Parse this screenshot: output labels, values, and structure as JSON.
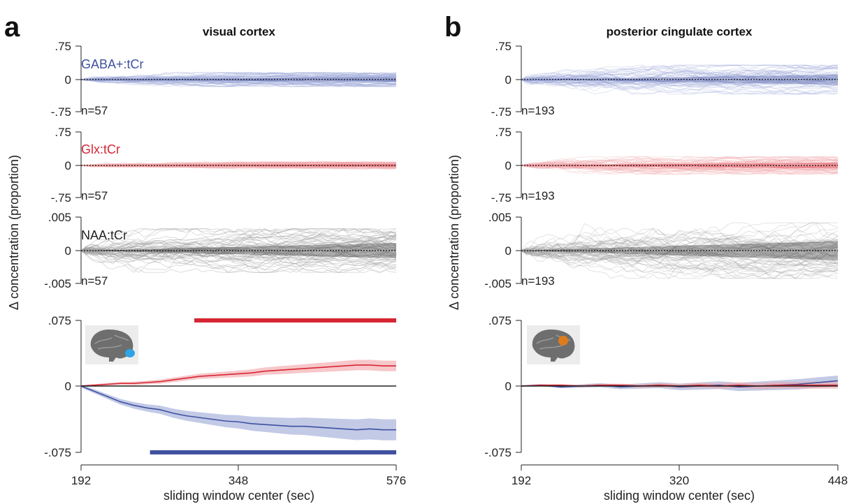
{
  "colors": {
    "gaba": "#3f51a0",
    "glx": "#d62633",
    "naa": "#222222",
    "gaba_band": "#9aa6d6",
    "glx_band": "#f1a2a6",
    "naa_band": "#9a9a9a"
  },
  "icons": [
    "brain-sagittal-visual-icon",
    "brain-sagittal-pcc-icon"
  ],
  "labels": {
    "panel_a": "a",
    "panel_b": "b",
    "title_a": "visual cortex",
    "title_b": "posterior cingulate cortex",
    "ylabel": "Δ concentration (proportion)",
    "xlabel": "sliding window center (sec)",
    "gaba": "GABA+:tCr",
    "glx": "Glx:tCr",
    "naa": "NAA:tCr",
    "n_a": "n=57",
    "n_b": "n=193"
  },
  "chart_data": [
    {
      "panel": "a",
      "title": "visual cortex",
      "type": "line",
      "xlabel": "sliding window center (sec)",
      "ylabel": "Δ concentration (proportion)",
      "xlim": [
        192,
        576
      ],
      "xticks": [
        "192",
        "348",
        "576"
      ],
      "subplots": [
        {
          "name": "GABA+:tCr",
          "n": "n=57",
          "ylim": [
            -0.75,
            0.75
          ],
          "yticks": [
            ".75",
            "0",
            "-.75"
          ],
          "individual_lines": 57,
          "spread_end": 0.12
        },
        {
          "name": "Glx:tCr",
          "n": "n=57",
          "ylim": [
            -0.75,
            0.75
          ],
          "yticks": [
            ".75",
            "0",
            "-.75"
          ],
          "individual_lines": 57,
          "spread_end": 0.06
        },
        {
          "name": "NAA:tCr",
          "n": "n=57",
          "ylim": [
            -0.005,
            0.005
          ],
          "yticks": [
            ".005",
            "0",
            "-.005"
          ],
          "individual_lines": 57,
          "spread_end": 0.0025
        },
        {
          "name": "mean",
          "ylim": [
            -0.075,
            0.075
          ],
          "yticks": [
            ".075",
            "0",
            "-.075"
          ],
          "significance_bars": [
            {
              "series": "Glx:tCr",
              "x_start": 330,
              "x_end": 576
            },
            {
              "series": "GABA+:tCr",
              "x_start": 276,
              "x_end": 576
            }
          ],
          "series": [
            {
              "name": "GABA+:tCr",
              "x": [
                192,
                208,
                224,
                240,
                256,
                272,
                288,
                304,
                320,
                336,
                352,
                368,
                384,
                400,
                416,
                432,
                448,
                464,
                480,
                496,
                512,
                528,
                544,
                560,
                576
              ],
              "y": [
                0,
                -0.006,
                -0.012,
                -0.018,
                -0.022,
                -0.025,
                -0.027,
                -0.031,
                -0.034,
                -0.036,
                -0.038,
                -0.04,
                -0.041,
                -0.043,
                -0.044,
                -0.045,
                -0.046,
                -0.046,
                -0.047,
                -0.048,
                -0.049,
                -0.05,
                -0.049,
                -0.05,
                -0.05
              ],
              "ci": 0.012
            },
            {
              "name": "Glx:tCr",
              "x": [
                192,
                208,
                224,
                240,
                256,
                272,
                288,
                304,
                320,
                336,
                352,
                368,
                384,
                400,
                416,
                432,
                448,
                464,
                480,
                496,
                512,
                528,
                544,
                560,
                576
              ],
              "y": [
                0,
                0.001,
                0.002,
                0.003,
                0.003,
                0.004,
                0.005,
                0.007,
                0.009,
                0.011,
                0.012,
                0.013,
                0.014,
                0.015,
                0.017,
                0.018,
                0.019,
                0.02,
                0.021,
                0.022,
                0.023,
                0.024,
                0.024,
                0.023,
                0.023
              ],
              "ci": 0.006
            },
            {
              "name": "NAA:tCr",
              "x": [
                192,
                576
              ],
              "y": [
                0,
                0
              ],
              "ci": 0.0005
            }
          ]
        }
      ]
    },
    {
      "panel": "b",
      "title": "posterior cingulate cortex",
      "type": "line",
      "xlabel": "sliding window center (sec)",
      "ylabel": "Δ concentration (proportion)",
      "xlim": [
        192,
        448
      ],
      "xticks": [
        "192",
        "320",
        "448"
      ],
      "subplots": [
        {
          "name": "GABA+:tCr",
          "n": "n=193",
          "ylim": [
            -0.75,
            0.75
          ],
          "yticks": [
            ".75",
            "0",
            "-.75"
          ],
          "individual_lines": 193,
          "spread_end": 0.25
        },
        {
          "name": "Glx:tCr",
          "n": "n=193",
          "ylim": [
            -0.75,
            0.75
          ],
          "yticks": [
            ".75",
            "0",
            "-.75"
          ],
          "individual_lines": 193,
          "spread_end": 0.15
        },
        {
          "name": "NAA:tCr",
          "n": "n=193",
          "ylim": [
            -0.005,
            0.005
          ],
          "yticks": [
            ".005",
            "0",
            "-.005"
          ],
          "individual_lines": 193,
          "spread_end": 0.0032
        },
        {
          "name": "mean",
          "ylim": [
            -0.075,
            0.075
          ],
          "yticks": [
            ".075",
            "0",
            "-.075"
          ],
          "significance_bars": [],
          "series": [
            {
              "name": "GABA+:tCr",
              "x": [
                192,
                208,
                224,
                240,
                256,
                272,
                288,
                304,
                320,
                336,
                352,
                368,
                384,
                400,
                416,
                432,
                448
              ],
              "y": [
                0,
                0.001,
                -0.001,
                0.0,
                0.001,
                -0.001,
                0.0,
                0.001,
                -0.001,
                0.0,
                0.001,
                -0.001,
                0.0,
                0.001,
                0.002,
                0.004,
                0.006
              ],
              "ci": 0.006
            },
            {
              "name": "Glx:tCr",
              "x": [
                192,
                208,
                224,
                240,
                256,
                272,
                288,
                304,
                320,
                336,
                352,
                368,
                384,
                400,
                416,
                432,
                448
              ],
              "y": [
                0,
                0.001,
                0.001,
                0.0,
                0.001,
                0.001,
                0.0,
                0.001,
                0.0,
                0.001,
                0.0,
                0.001,
                0.0,
                0.001,
                0.001,
                0.001,
                0.001
              ],
              "ci": 0.004
            },
            {
              "name": "NAA:tCr",
              "x": [
                192,
                448
              ],
              "y": [
                0,
                0
              ],
              "ci": 0.0005
            }
          ]
        }
      ]
    }
  ]
}
